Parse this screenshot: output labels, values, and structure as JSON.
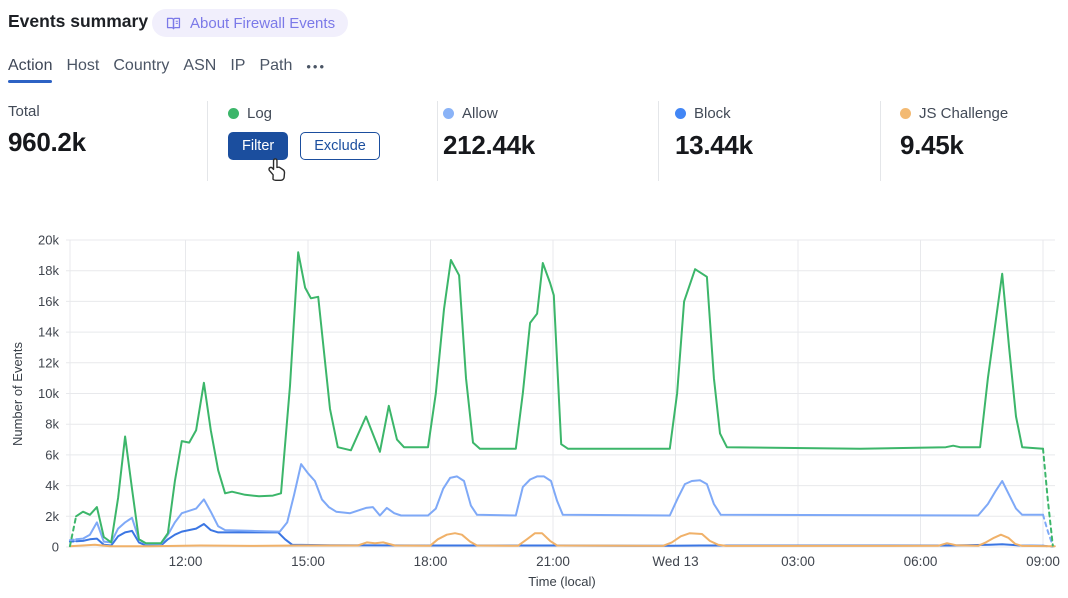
{
  "header": {
    "title": "Events summary",
    "about_badge_label": "About Firewall Events"
  },
  "tabs": {
    "items": [
      {
        "label": "Action",
        "active": true
      },
      {
        "label": "Host",
        "active": false
      },
      {
        "label": "Country",
        "active": false
      },
      {
        "label": "ASN",
        "active": false
      },
      {
        "label": "IP",
        "active": false
      },
      {
        "label": "Path",
        "active": false
      }
    ],
    "more_label": "•••"
  },
  "stats": {
    "total": {
      "label": "Total",
      "value": "960.2k"
    },
    "log": {
      "label": "Log",
      "dot_color": "#3cb66a",
      "filter_label": "Filter",
      "exclude_label": "Exclude"
    },
    "allow": {
      "label": "Allow",
      "dot_color": "#8ab3f7",
      "value": "212.44k"
    },
    "block": {
      "label": "Block",
      "dot_color": "#4286f5",
      "value": "13.44k"
    },
    "js_challenge": {
      "label": "JS Challenge",
      "dot_color": "#f3ba73",
      "value": "9.45k"
    }
  },
  "colors": {
    "accent_blue": "#1b4e9e",
    "tab_underline": "#2d62c4",
    "badge_text": "#7b79e8",
    "grid": "#e8e9ec"
  },
  "chart_data": {
    "type": "line",
    "title": "",
    "xlabel": "Time (local)",
    "ylabel": "Number of Events",
    "x_unit": "hours since Tue 00:00 (local); 24 = Wed 13 00:00",
    "y_unit": "thousands of events",
    "ylim": [
      0,
      20000
    ],
    "grid": true,
    "legend_position": "stats-row-above",
    "xticks": [
      {
        "t": 12,
        "label": "12:00"
      },
      {
        "t": 15,
        "label": "15:00"
      },
      {
        "t": 18,
        "label": "18:00"
      },
      {
        "t": 21,
        "label": "21:00"
      },
      {
        "t": 24,
        "label": "Wed 13"
      },
      {
        "t": 27,
        "label": "03:00"
      },
      {
        "t": 30,
        "label": "06:00"
      },
      {
        "t": 33,
        "label": "09:00"
      }
    ],
    "yticks": [
      {
        "v": 0,
        "label": "0"
      },
      {
        "v": 2,
        "label": "2k"
      },
      {
        "v": 4,
        "label": "4k"
      },
      {
        "v": 6,
        "label": "6k"
      },
      {
        "v": 8,
        "label": "8k"
      },
      {
        "v": 10,
        "label": "10k"
      },
      {
        "v": 12,
        "label": "12k"
      },
      {
        "v": 14,
        "label": "14k"
      },
      {
        "v": 16,
        "label": "16k"
      },
      {
        "v": 18,
        "label": "18k"
      },
      {
        "v": 20,
        "label": "20k"
      }
    ],
    "series": [
      {
        "name": "Log",
        "color": "#3cb66a",
        "draw_order": 4,
        "dash_head": 1,
        "dash_tail": 2,
        "points": [
          [
            9.17,
            0.05
          ],
          [
            9.32,
            2.0
          ],
          [
            9.49,
            2.3
          ],
          [
            9.66,
            2.1
          ],
          [
            9.83,
            2.6
          ],
          [
            10.0,
            0.65
          ],
          [
            10.18,
            0.3
          ],
          [
            10.35,
            3.2
          ],
          [
            10.52,
            7.2
          ],
          [
            10.69,
            3.8
          ],
          [
            10.86,
            0.5
          ],
          [
            11.03,
            0.25
          ],
          [
            11.4,
            0.25
          ],
          [
            11.57,
            0.9
          ],
          [
            11.74,
            4.3
          ],
          [
            11.91,
            6.9
          ],
          [
            12.09,
            6.8
          ],
          [
            12.26,
            7.6
          ],
          [
            12.45,
            10.7
          ],
          [
            12.62,
            7.6
          ],
          [
            12.8,
            5.0
          ],
          [
            12.97,
            3.5
          ],
          [
            13.14,
            3.6
          ],
          [
            13.46,
            3.4
          ],
          [
            13.8,
            3.3
          ],
          [
            14.14,
            3.35
          ],
          [
            14.34,
            3.5
          ],
          [
            14.56,
            10.5
          ],
          [
            14.76,
            19.2
          ],
          [
            14.93,
            16.9
          ],
          [
            15.07,
            16.2
          ],
          [
            15.25,
            16.3
          ],
          [
            15.54,
            9.0
          ],
          [
            15.73,
            6.5
          ],
          [
            16.05,
            6.3
          ],
          [
            16.42,
            8.5
          ],
          [
            16.76,
            6.2
          ],
          [
            16.98,
            9.2
          ],
          [
            17.18,
            7.0
          ],
          [
            17.35,
            6.5
          ],
          [
            17.94,
            6.5
          ],
          [
            18.13,
            10.0
          ],
          [
            18.33,
            15.5
          ],
          [
            18.5,
            18.7
          ],
          [
            18.7,
            17.7
          ],
          [
            18.87,
            11.0
          ],
          [
            19.04,
            6.8
          ],
          [
            19.21,
            6.4
          ],
          [
            20.09,
            6.4
          ],
          [
            20.26,
            10.0
          ],
          [
            20.44,
            14.6
          ],
          [
            20.61,
            15.2
          ],
          [
            20.75,
            18.5
          ],
          [
            20.93,
            17.2
          ],
          [
            21.02,
            16.4
          ],
          [
            21.2,
            6.7
          ],
          [
            21.37,
            6.4
          ],
          [
            23.86,
            6.4
          ],
          [
            24.04,
            10.0
          ],
          [
            24.21,
            16.0
          ],
          [
            24.48,
            18.1
          ],
          [
            24.77,
            17.6
          ],
          [
            24.94,
            11.0
          ],
          [
            25.09,
            7.4
          ],
          [
            25.26,
            6.5
          ],
          [
            28.52,
            6.4
          ],
          [
            30.62,
            6.5
          ],
          [
            30.8,
            6.6
          ],
          [
            30.97,
            6.5
          ],
          [
            31.46,
            6.5
          ],
          [
            31.65,
            11.0
          ],
          [
            32.0,
            17.8
          ],
          [
            32.17,
            13.0
          ],
          [
            32.34,
            8.5
          ],
          [
            32.49,
            6.5
          ],
          [
            33.0,
            6.4
          ],
          [
            33.12,
            3.0
          ],
          [
            33.24,
            0.1
          ]
        ]
      },
      {
        "name": "Allow",
        "color": "#7fa9f7",
        "draw_order": 2,
        "dash_head": 1,
        "dash_tail": 2,
        "points": [
          [
            9.17,
            0.45
          ],
          [
            9.32,
            0.5
          ],
          [
            9.49,
            0.55
          ],
          [
            9.66,
            0.8
          ],
          [
            9.83,
            1.6
          ],
          [
            10.0,
            0.35
          ],
          [
            10.18,
            0.3
          ],
          [
            10.35,
            1.2
          ],
          [
            10.52,
            1.6
          ],
          [
            10.69,
            1.9
          ],
          [
            10.86,
            0.5
          ],
          [
            11.03,
            0.2
          ],
          [
            11.4,
            0.2
          ],
          [
            11.57,
            0.8
          ],
          [
            11.74,
            1.6
          ],
          [
            11.91,
            2.2
          ],
          [
            12.26,
            2.5
          ],
          [
            12.45,
            3.1
          ],
          [
            12.62,
            2.3
          ],
          [
            12.8,
            1.35
          ],
          [
            12.97,
            1.1
          ],
          [
            13.63,
            1.05
          ],
          [
            14.31,
            1.0
          ],
          [
            14.49,
            1.6
          ],
          [
            14.66,
            3.4
          ],
          [
            14.83,
            5.4
          ],
          [
            15.0,
            4.8
          ],
          [
            15.17,
            4.3
          ],
          [
            15.34,
            3.1
          ],
          [
            15.51,
            2.6
          ],
          [
            15.69,
            2.3
          ],
          [
            16.03,
            2.2
          ],
          [
            16.42,
            2.55
          ],
          [
            16.59,
            2.6
          ],
          [
            16.76,
            2.05
          ],
          [
            16.93,
            2.55
          ],
          [
            17.11,
            2.2
          ],
          [
            17.28,
            2.05
          ],
          [
            17.94,
            2.05
          ],
          [
            18.13,
            2.5
          ],
          [
            18.31,
            3.8
          ],
          [
            18.48,
            4.5
          ],
          [
            18.65,
            4.6
          ],
          [
            18.82,
            4.3
          ],
          [
            18.99,
            2.7
          ],
          [
            19.14,
            2.1
          ],
          [
            20.09,
            2.05
          ],
          [
            20.26,
            3.9
          ],
          [
            20.44,
            4.4
          ],
          [
            20.61,
            4.6
          ],
          [
            20.78,
            4.6
          ],
          [
            20.95,
            4.3
          ],
          [
            21.1,
            3.0
          ],
          [
            21.24,
            2.1
          ],
          [
            23.86,
            2.05
          ],
          [
            24.06,
            3.2
          ],
          [
            24.23,
            4.1
          ],
          [
            24.4,
            4.3
          ],
          [
            24.6,
            4.35
          ],
          [
            24.77,
            4.1
          ],
          [
            24.94,
            2.8
          ],
          [
            25.11,
            2.1
          ],
          [
            31.41,
            2.05
          ],
          [
            31.65,
            2.8
          ],
          [
            31.83,
            3.6
          ],
          [
            32.0,
            4.3
          ],
          [
            32.17,
            3.4
          ],
          [
            32.34,
            2.5
          ],
          [
            32.49,
            2.1
          ],
          [
            33.0,
            2.1
          ],
          [
            33.12,
            1.0
          ],
          [
            33.24,
            0.1
          ]
        ]
      },
      {
        "name": "Block",
        "color": "#3b76e3",
        "draw_order": 1,
        "dash_head": 1,
        "dash_tail": 1,
        "points": [
          [
            9.17,
            0.35
          ],
          [
            9.32,
            0.38
          ],
          [
            9.49,
            0.4
          ],
          [
            9.66,
            0.5
          ],
          [
            9.83,
            0.55
          ],
          [
            10.0,
            0.15
          ],
          [
            10.18,
            0.1
          ],
          [
            10.35,
            0.7
          ],
          [
            10.52,
            0.95
          ],
          [
            10.69,
            1.05
          ],
          [
            10.86,
            0.3
          ],
          [
            11.03,
            0.1
          ],
          [
            11.4,
            0.1
          ],
          [
            11.57,
            0.5
          ],
          [
            11.74,
            0.8
          ],
          [
            11.91,
            1.0
          ],
          [
            12.26,
            1.2
          ],
          [
            12.45,
            1.5
          ],
          [
            12.62,
            1.1
          ],
          [
            12.8,
            0.95
          ],
          [
            13.63,
            0.95
          ],
          [
            14.27,
            0.95
          ],
          [
            14.44,
            0.5
          ],
          [
            14.61,
            0.15
          ],
          [
            15.54,
            0.12
          ],
          [
            17.99,
            0.1
          ],
          [
            21.17,
            0.1
          ],
          [
            23.86,
            0.08
          ],
          [
            24.6,
            0.1
          ],
          [
            30.72,
            0.1
          ],
          [
            31.7,
            0.15
          ],
          [
            32.0,
            0.18
          ],
          [
            32.44,
            0.1
          ],
          [
            33.0,
            0.08
          ],
          [
            33.24,
            0.03
          ]
        ]
      },
      {
        "name": "JS Challenge",
        "color": "#f0b169",
        "draw_order": 3,
        "dash_head": 0,
        "dash_tail": 0,
        "points": [
          [
            9.17,
            0.05
          ],
          [
            9.78,
            0.15
          ],
          [
            10.15,
            0.05
          ],
          [
            11.13,
            0.05
          ],
          [
            12.36,
            0.1
          ],
          [
            13.58,
            0.07
          ],
          [
            14.8,
            0.1
          ],
          [
            16.22,
            0.1
          ],
          [
            16.44,
            0.3
          ],
          [
            16.64,
            0.25
          ],
          [
            16.84,
            0.3
          ],
          [
            17.13,
            0.1
          ],
          [
            17.99,
            0.08
          ],
          [
            18.18,
            0.5
          ],
          [
            18.4,
            0.8
          ],
          [
            18.6,
            0.9
          ],
          [
            18.77,
            0.8
          ],
          [
            18.97,
            0.35
          ],
          [
            19.14,
            0.1
          ],
          [
            20.14,
            0.08
          ],
          [
            20.36,
            0.5
          ],
          [
            20.56,
            0.9
          ],
          [
            20.73,
            0.9
          ],
          [
            20.93,
            0.4
          ],
          [
            21.1,
            0.1
          ],
          [
            23.69,
            0.07
          ],
          [
            23.91,
            0.3
          ],
          [
            24.13,
            0.7
          ],
          [
            24.35,
            0.9
          ],
          [
            24.65,
            0.85
          ],
          [
            24.84,
            0.4
          ],
          [
            25.04,
            0.15
          ],
          [
            25.24,
            0.07
          ],
          [
            30.43,
            0.08
          ],
          [
            30.65,
            0.25
          ],
          [
            30.87,
            0.12
          ],
          [
            31.41,
            0.08
          ],
          [
            31.6,
            0.3
          ],
          [
            31.8,
            0.6
          ],
          [
            31.97,
            0.8
          ],
          [
            32.15,
            0.6
          ],
          [
            32.32,
            0.2
          ],
          [
            32.49,
            0.07
          ],
          [
            33.29,
            0.05
          ]
        ]
      }
    ]
  }
}
